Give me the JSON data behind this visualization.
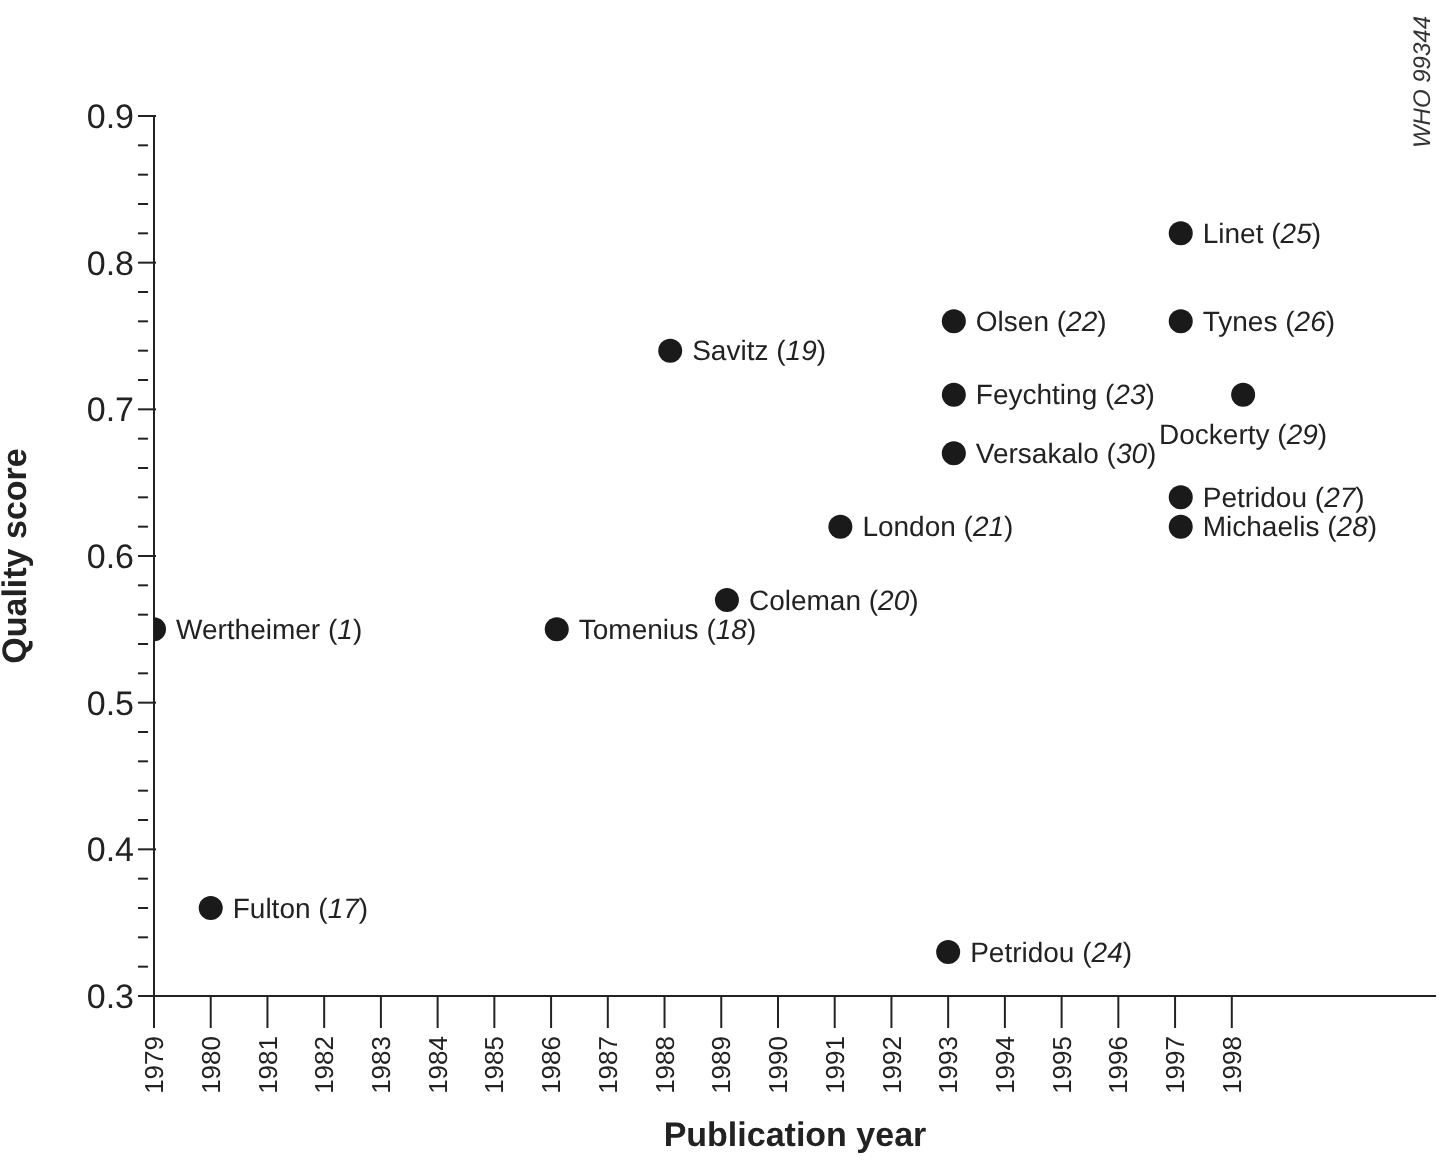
{
  "chart_data": {
    "type": "scatter",
    "xlabel": "Publication year",
    "ylabel": "Quality score",
    "x": [
      1979,
      1980,
      1986.1,
      1988.1,
      1989.1,
      1991.1,
      1993.1,
      1993.1,
      1993.1,
      1993,
      1997.1,
      1997.1,
      1998.2,
      1997.1,
      1997.1
    ],
    "series": [
      {
        "color": "#1a1a1a",
        "values": [
          0.55,
          0.36,
          0.55,
          0.74,
          0.57,
          0.62,
          0.76,
          0.71,
          0.67,
          0.33,
          0.82,
          0.76,
          0.71,
          0.64,
          0.62
        ]
      }
    ],
    "marker": "circle",
    "xlim": [
      1979,
      2001.6
    ],
    "xticks": [
      1979,
      1980,
      1981,
      1982,
      1983,
      1984,
      1985,
      1986,
      1987,
      1988,
      1989,
      1990,
      1991,
      1992,
      1993,
      1994,
      1995,
      1996,
      1997,
      1998
    ],
    "ylim": [
      0.3,
      0.9
    ],
    "yticks": [
      0.3,
      {
        "value": 0.32,
        "label": null
      },
      {
        "value": 0.34,
        "label": null
      },
      {
        "value": 0.36,
        "label": null
      },
      {
        "value": 0.38,
        "label": null
      },
      0.4,
      {
        "value": 0.42,
        "label": null
      },
      {
        "value": 0.44,
        "label": null
      },
      {
        "value": 0.46,
        "label": null
      },
      {
        "value": 0.48,
        "label": null
      },
      0.5,
      {
        "value": 0.52,
        "label": null
      },
      {
        "value": 0.54,
        "label": null
      },
      {
        "value": 0.56,
        "label": null
      },
      {
        "value": 0.58,
        "label": null
      },
      0.6,
      {
        "value": 0.62,
        "label": null
      },
      {
        "value": 0.64,
        "label": null
      },
      {
        "value": 0.66,
        "label": null
      },
      {
        "value": 0.68,
        "label": null
      },
      0.7,
      {
        "value": 0.72,
        "label": null
      },
      {
        "value": 0.74,
        "label": null
      },
      {
        "value": 0.76,
        "label": null
      },
      {
        "value": 0.78,
        "label": null
      },
      0.8,
      {
        "value": 0.82,
        "label": null
      },
      {
        "value": 0.84,
        "label": null
      },
      {
        "value": 0.86,
        "label": null
      },
      {
        "value": 0.88,
        "label": null
      },
      0.9
    ],
    "grid": false,
    "legend": false,
    "annotations": [
      {
        "text": "Wertheimer (1)",
        "x": 1979,
        "y": 0.55
      },
      {
        "text": "Fulton (17)",
        "x": 1980,
        "y": 0.36
      },
      {
        "text": "Tomenius (18)",
        "x": 1986.1,
        "y": 0.55
      },
      {
        "text": "Savitz (19)",
        "x": 1988.1,
        "y": 0.74
      },
      {
        "text": "Coleman (20)",
        "x": 1989.1,
        "y": 0.57
      },
      {
        "text": "London (21)",
        "x": 1991.1,
        "y": 0.62
      },
      {
        "text": "Olsen (22)",
        "x": 1993.1,
        "y": 0.76
      },
      {
        "text": "Feychting (23)",
        "x": 1993.1,
        "y": 0.71
      },
      {
        "text": "Versakalo (30)",
        "x": 1993.1,
        "y": 0.67
      },
      {
        "text": "Petridou (24)",
        "x": 1993,
        "y": 0.33
      },
      {
        "text": "Linet (25)",
        "x": 1997.1,
        "y": 0.82
      },
      {
        "text": "Tynes (26)",
        "x": 1997.1,
        "y": 0.76
      },
      {
        "text": "Dockerty (29)",
        "x": 1998.2,
        "y": 0.71
      },
      {
        "text": "Petridou (27)",
        "x": 1997.1,
        "y": 0.64
      },
      {
        "text": "Michaelis (28)",
        "x": 1997.1,
        "y": 0.62
      },
      "WHO 99344"
    ]
  }
}
